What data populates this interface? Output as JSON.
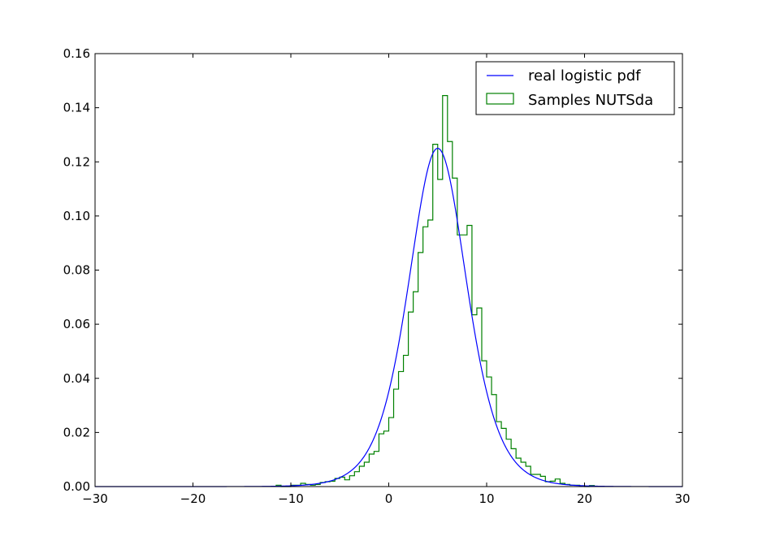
{
  "chart_data": {
    "type": "line",
    "title": "",
    "xlabel": "",
    "ylabel": "",
    "xlim": [
      -30,
      30
    ],
    "ylim": [
      0,
      0.16
    ],
    "xticks": [
      -30,
      -20,
      -10,
      0,
      10,
      20,
      30
    ],
    "xtick_labels": [
      "−30",
      "−20",
      "−10",
      "0",
      "10",
      "20",
      "30"
    ],
    "yticks": [
      0,
      0.02,
      0.04,
      0.06,
      0.08,
      0.1,
      0.12,
      0.14,
      0.16
    ],
    "ytick_labels": [
      "0.00",
      "0.02",
      "0.04",
      "0.06",
      "0.08",
      "0.10",
      "0.12",
      "0.14",
      "0.16"
    ],
    "grid": false,
    "legend_position": "top-right",
    "series": [
      {
        "name": "real logistic pdf",
        "kind": "line",
        "color": "#0000ff",
        "distribution": "logistic",
        "location": 5,
        "scale": 2,
        "peak": 0.125
      },
      {
        "name": "Samples NUTSda",
        "kind": "step-histogram",
        "color": "#008000",
        "bin_edges": [
          -11.5,
          -11.0,
          -10.0,
          -9.0,
          -8.5,
          -8.0,
          -7.5,
          -7.0,
          -6.5,
          -6.0,
          -5.5,
          -5.0,
          -4.5,
          -4.0,
          -3.5,
          -3.0,
          -2.5,
          -2.0,
          -1.5,
          -1.0,
          -0.5,
          0.0,
          0.5,
          1.0,
          1.5,
          2.0,
          2.5,
          3.0,
          3.5,
          4.0,
          4.5,
          5.0,
          5.5,
          6.0,
          6.5,
          7.0,
          7.5,
          8.0,
          8.5,
          9.0,
          9.5,
          10.0,
          10.5,
          11.0,
          11.5,
          12.0,
          12.5,
          13.0,
          13.5,
          14.0,
          14.5,
          15.0,
          15.5,
          16.0,
          16.5,
          17.0,
          17.5,
          18.0,
          18.5,
          19.0,
          19.5,
          20.0,
          20.5,
          21.0
        ],
        "counts": [
          0.0005,
          0.0,
          0.0005,
          0.0012,
          0.0008,
          0.0005,
          0.0008,
          0.0015,
          0.0018,
          0.002,
          0.003,
          0.0035,
          0.0025,
          0.004,
          0.0055,
          0.0075,
          0.009,
          0.012,
          0.013,
          0.0195,
          0.0205,
          0.0255,
          0.036,
          0.0425,
          0.0485,
          0.0645,
          0.072,
          0.0865,
          0.096,
          0.0985,
          0.1265,
          0.1135,
          0.1445,
          0.1275,
          0.114,
          0.093,
          0.093,
          0.0965,
          0.0635,
          0.066,
          0.0465,
          0.0405,
          0.034,
          0.024,
          0.0215,
          0.0175,
          0.014,
          0.0105,
          0.009,
          0.0075,
          0.0045,
          0.0045,
          0.0038,
          0.0018,
          0.002,
          0.0028,
          0.0012,
          0.0008,
          0.0005,
          0.0005,
          0.0003,
          0.0,
          0.0004
        ]
      }
    ]
  }
}
